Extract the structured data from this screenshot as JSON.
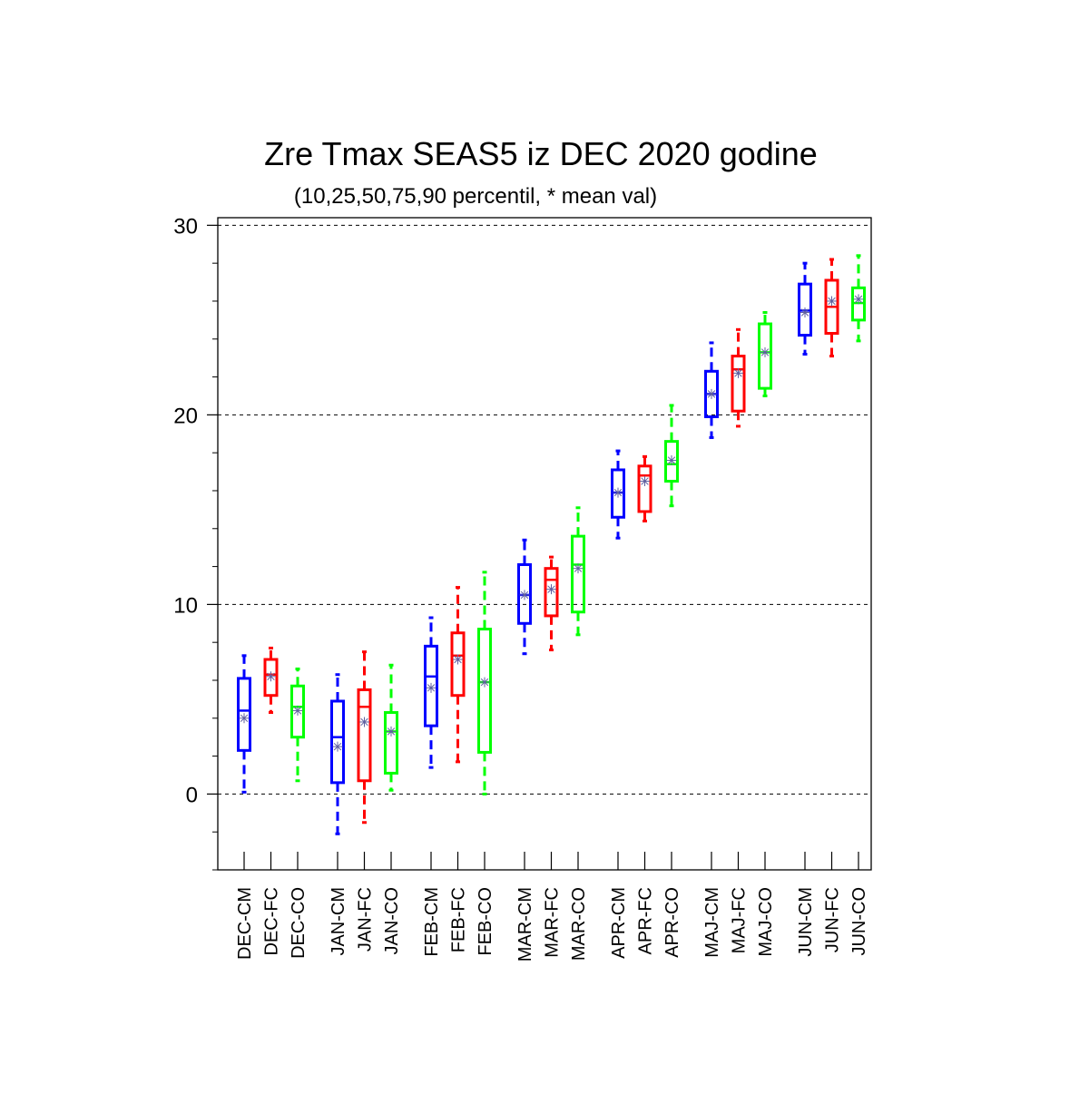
{
  "chart_data": {
    "type": "box",
    "title": "Zre Tmax SEAS5 iz DEC 2020 godine",
    "subtitle": "(10,25,50,75,90 percentil, * mean val)",
    "ylim": [
      -4,
      30.4
    ],
    "yticks": [
      0,
      10,
      20,
      30
    ],
    "yticks_minor_step": 2,
    "grid": "horizontal dashed at major ticks",
    "series_colors": {
      "CM": "#0000ff",
      "FC": "#ff0000",
      "CO": "#00ff00"
    },
    "boxes": [
      {
        "label": "DEC-CM",
        "color": "CM",
        "p10": 0.1,
        "p25": 2.3,
        "p50": 4.4,
        "p75": 6.1,
        "p90": 7.3,
        "mean": 4.0
      },
      {
        "label": "DEC-FC",
        "color": "FC",
        "p10": 4.3,
        "p25": 5.2,
        "p50": 6.3,
        "p75": 7.1,
        "p90": 7.7,
        "mean": 6.2
      },
      {
        "label": "DEC-CO",
        "color": "CO",
        "p10": 0.7,
        "p25": 3.0,
        "p50": 4.6,
        "p75": 5.7,
        "p90": 6.6,
        "mean": 4.4
      },
      {
        "label": "JAN-CM",
        "color": "CM",
        "p10": -2.1,
        "p25": 0.6,
        "p50": 3.0,
        "p75": 4.9,
        "p90": 6.3,
        "mean": 2.5
      },
      {
        "label": "JAN-FC",
        "color": "FC",
        "p10": -1.5,
        "p25": 0.7,
        "p50": 4.6,
        "p75": 5.5,
        "p90": 7.5,
        "mean": 3.8
      },
      {
        "label": "JAN-CO",
        "color": "CO",
        "p10": 0.2,
        "p25": 1.1,
        "p50": 3.3,
        "p75": 4.3,
        "p90": 6.8,
        "mean": 3.3
      },
      {
        "label": "FEB-CM",
        "color": "CM",
        "p10": 1.4,
        "p25": 3.6,
        "p50": 6.2,
        "p75": 7.8,
        "p90": 9.3,
        "mean": 5.6
      },
      {
        "label": "FEB-FC",
        "color": "FC",
        "p10": 1.7,
        "p25": 5.2,
        "p50": 7.3,
        "p75": 8.5,
        "p90": 10.9,
        "mean": 7.1
      },
      {
        "label": "FEB-CO",
        "color": "CO",
        "p10": 0.0,
        "p25": 2.2,
        "p50": 5.9,
        "p75": 8.7,
        "p90": 11.7,
        "mean": 5.9
      },
      {
        "label": "MAR-CM",
        "color": "CM",
        "p10": 7.4,
        "p25": 9.0,
        "p50": 10.5,
        "p75": 12.1,
        "p90": 13.4,
        "mean": 10.5
      },
      {
        "label": "MAR-FC",
        "color": "FC",
        "p10": 7.6,
        "p25": 9.4,
        "p50": 11.3,
        "p75": 11.9,
        "p90": 12.5,
        "mean": 10.8
      },
      {
        "label": "MAR-CO",
        "color": "CO",
        "p10": 8.4,
        "p25": 9.6,
        "p50": 12.1,
        "p75": 13.6,
        "p90": 15.1,
        "mean": 11.9
      },
      {
        "label": "APR-CM",
        "color": "CM",
        "p10": 13.5,
        "p25": 14.6,
        "p50": 15.9,
        "p75": 17.1,
        "p90": 18.1,
        "mean": 15.9
      },
      {
        "label": "APR-FC",
        "color": "FC",
        "p10": 14.4,
        "p25": 14.9,
        "p50": 16.8,
        "p75": 17.3,
        "p90": 17.8,
        "mean": 16.5
      },
      {
        "label": "APR-CO",
        "color": "CO",
        "p10": 15.2,
        "p25": 16.5,
        "p50": 17.4,
        "p75": 18.6,
        "p90": 20.5,
        "mean": 17.6
      },
      {
        "label": "MAJ-CM",
        "color": "CM",
        "p10": 18.8,
        "p25": 19.9,
        "p50": 21.1,
        "p75": 22.3,
        "p90": 23.8,
        "mean": 21.1
      },
      {
        "label": "MAJ-FC",
        "color": "FC",
        "p10": 19.4,
        "p25": 20.2,
        "p50": 22.4,
        "p75": 23.1,
        "p90": 24.5,
        "mean": 22.2
      },
      {
        "label": "MAJ-CO",
        "color": "CO",
        "p10": 21.0,
        "p25": 21.4,
        "p50": 23.3,
        "p75": 24.8,
        "p90": 25.4,
        "mean": 23.3
      },
      {
        "label": "JUN-CM",
        "color": "CM",
        "p10": 23.2,
        "p25": 24.2,
        "p50": 25.5,
        "p75": 26.9,
        "p90": 28.0,
        "mean": 25.4
      },
      {
        "label": "JUN-FC",
        "color": "FC",
        "p10": 23.1,
        "p25": 24.3,
        "p50": 25.7,
        "p75": 27.1,
        "p90": 28.2,
        "mean": 26.0
      },
      {
        "label": "JUN-CO",
        "color": "CO",
        "p10": 23.9,
        "p25": 25.0,
        "p50": 25.9,
        "p75": 26.7,
        "p90": 28.4,
        "mean": 26.1
      }
    ]
  }
}
